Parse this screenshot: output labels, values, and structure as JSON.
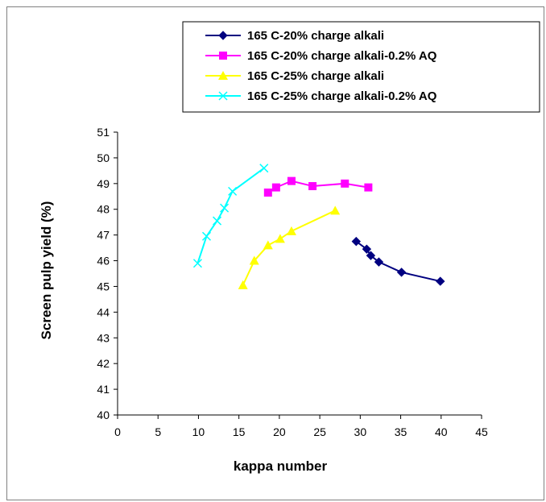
{
  "chart_data": {
    "type": "line",
    "title": "",
    "xlabel": "kappa number",
    "ylabel": "Screen pulp yield (%)",
    "xlim": [
      0,
      45
    ],
    "ylim": [
      40,
      51
    ],
    "xticks": [
      0,
      5,
      10,
      15,
      20,
      25,
      30,
      35,
      40,
      45
    ],
    "yticks": [
      40,
      41,
      42,
      43,
      44,
      45,
      46,
      47,
      48,
      49,
      50,
      51
    ],
    "grid": false,
    "legend_position": "top-right",
    "series": [
      {
        "name": "165 C-20% charge alkali",
        "color": "#000080",
        "marker": "diamond",
        "x": [
          29.5,
          30.8,
          31.3,
          32.3,
          35.1,
          39.9
        ],
        "y": [
          46.75,
          46.45,
          46.2,
          45.95,
          45.55,
          45.2
        ]
      },
      {
        "name": "165 C-20% charge alkali-0.2% AQ",
        "color": "#FF00FF",
        "marker": "square",
        "x": [
          18.6,
          19.6,
          21.5,
          24.1,
          28.1,
          31.0
        ],
        "y": [
          48.65,
          48.85,
          49.1,
          48.9,
          49.0,
          48.85
        ]
      },
      {
        "name": "165 C-25% charge alkali",
        "color": "#FFFF00",
        "marker": "triangle",
        "x": [
          15.5,
          16.9,
          18.6,
          20.1,
          21.5,
          26.9
        ],
        "y": [
          45.05,
          46.0,
          46.6,
          46.85,
          47.15,
          47.95
        ]
      },
      {
        "name": "165 C-25% charge alkali-0.2% AQ",
        "color": "#00FFFF",
        "marker": "x",
        "x": [
          9.9,
          11.0,
          12.3,
          13.2,
          14.2,
          18.1
        ],
        "y": [
          45.9,
          46.95,
          47.55,
          48.05,
          48.7,
          49.6
        ]
      }
    ]
  }
}
